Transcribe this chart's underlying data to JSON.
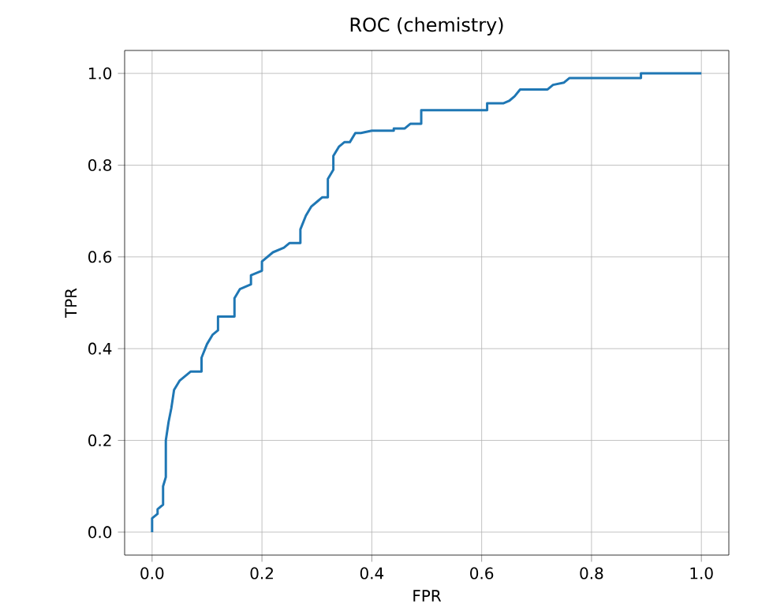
{
  "chart_data": {
    "type": "line",
    "title": "ROC (chemistry)",
    "xlabel": "FPR",
    "ylabel": "TPR",
    "xlim": [
      -0.05,
      1.05
    ],
    "ylim": [
      -0.05,
      1.05
    ],
    "xticks": [
      {
        "value": 0,
        "label": "0.0"
      },
      0.2,
      0.4,
      0.6,
      0.8,
      {
        "value": 1,
        "label": "1.0"
      }
    ],
    "yticks": [
      {
        "value": 0,
        "label": "0.0"
      },
      0.2,
      0.4,
      0.6,
      0.8,
      {
        "value": 1,
        "label": "1.0"
      }
    ],
    "grid": true,
    "series": [
      {
        "color": "#1f77b4",
        "x": [
          0,
          0,
          0.01,
          0.01,
          0.02,
          0.02,
          0.025,
          0.025,
          0.03,
          0.035,
          0.04,
          0.05,
          0.06,
          0.07,
          0.09,
          0.09,
          0.1,
          0.11,
          0.12,
          0.12,
          0.15,
          0.15,
          0.16,
          0.18,
          0.18,
          0.2,
          0.2,
          0.22,
          0.24,
          0.25,
          0.27,
          0.27,
          0.28,
          0.29,
          0.3,
          0.31,
          0.32,
          0.32,
          0.33,
          0.33,
          0.34,
          0.35,
          0.36,
          0.37,
          0.38,
          0.4,
          0.44,
          0.44,
          0.46,
          0.47,
          0.49,
          0.49,
          0.61,
          0.61,
          0.64,
          0.65,
          0.66,
          0.67,
          0.72,
          0.73,
          0.75,
          0.76,
          0.89,
          0.89,
          1
        ],
        "values": [
          0,
          0.03,
          0.04,
          0.05,
          0.06,
          0.1,
          0.12,
          0.2,
          0.24,
          0.27,
          0.31,
          0.33,
          0.34,
          0.35,
          0.35,
          0.38,
          0.41,
          0.43,
          0.44,
          0.47,
          0.47,
          0.51,
          0.53,
          0.54,
          0.56,
          0.57,
          0.59,
          0.61,
          0.62,
          0.63,
          0.63,
          0.66,
          0.69,
          0.71,
          0.72,
          0.73,
          0.73,
          0.77,
          0.79,
          0.82,
          0.84,
          0.85,
          0.85,
          0.87,
          0.87,
          0.875,
          0.875,
          0.88,
          0.88,
          0.89,
          0.89,
          0.92,
          0.92,
          0.935,
          0.935,
          0.94,
          0.95,
          0.965,
          0.965,
          0.975,
          0.98,
          0.99,
          0.99,
          1.0,
          1
        ]
      }
    ]
  }
}
